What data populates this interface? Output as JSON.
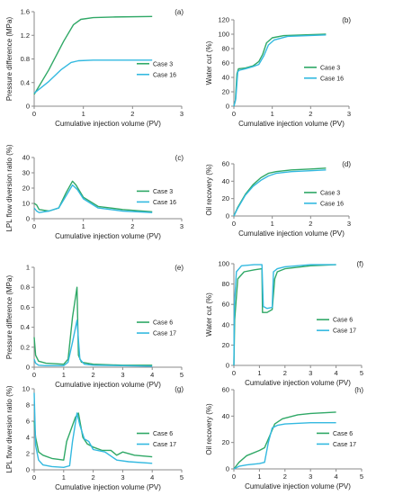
{
  "colors": {
    "green": "#2fa866",
    "blue": "#33b9e0",
    "axis": "#8a8a8a",
    "text": "#222222"
  },
  "chart_data": [
    {
      "panel": "(a)",
      "type": "line",
      "xlabel": "Cumulative injection volume (PV)",
      "ylabel": "Pressure difference (MPa)",
      "xlim": [
        0,
        3
      ],
      "ylim": [
        0,
        1.6
      ],
      "xticks": [
        "0",
        "1",
        "2",
        "3"
      ],
      "yticks": [
        "0",
        "0.4",
        "0.8",
        "1.2",
        "1.6"
      ],
      "legend": "right",
      "series": [
        {
          "name": "Case 3",
          "color": "green",
          "x": [
            0,
            0.3,
            0.6,
            0.8,
            0.95,
            1.2,
            1.6,
            2.4
          ],
          "y": [
            0.2,
            0.62,
            1.1,
            1.38,
            1.47,
            1.5,
            1.51,
            1.52
          ]
        },
        {
          "name": "Case 16",
          "color": "blue",
          "x": [
            0,
            0.3,
            0.55,
            0.75,
            0.9,
            1.2,
            2.4
          ],
          "y": [
            0.22,
            0.42,
            0.62,
            0.74,
            0.77,
            0.78,
            0.78
          ]
        }
      ]
    },
    {
      "panel": "(b)",
      "type": "line",
      "xlabel": "Cumulative injection volume (PV)",
      "ylabel": "Water cut (%)",
      "xlim": [
        0,
        3
      ],
      "ylim": [
        0,
        120
      ],
      "xticks": [
        "0",
        "1",
        "2",
        "3"
      ],
      "yticks": [
        "0",
        "20",
        "40",
        "60",
        "80",
        "100",
        "120"
      ],
      "legend": "right",
      "series": [
        {
          "name": "Case 3",
          "color": "green",
          "x": [
            0,
            0.04,
            0.08,
            0.12,
            0.3,
            0.5,
            0.65,
            0.75,
            0.85,
            1.0,
            1.3,
            1.8,
            2.4
          ],
          "y": [
            0,
            8,
            45,
            52,
            53,
            56,
            62,
            72,
            88,
            95,
            98,
            99,
            100
          ]
        },
        {
          "name": "Case 16",
          "color": "blue",
          "x": [
            0,
            0.05,
            0.1,
            0.15,
            0.3,
            0.5,
            0.65,
            0.78,
            0.9,
            1.05,
            1.4,
            2.4
          ],
          "y": [
            0,
            10,
            48,
            50,
            52,
            55,
            58,
            70,
            85,
            92,
            97,
            99
          ]
        }
      ]
    },
    {
      "panel": "(c)",
      "type": "line",
      "xlabel": "Cumulative injection volume (PV)",
      "ylabel": "LPL flow diversion ratio (%)",
      "xlim": [
        0,
        3
      ],
      "ylim": [
        0,
        40
      ],
      "xticks": [
        "0",
        "1",
        "2",
        "3"
      ],
      "yticks": [
        "0",
        "10",
        "20",
        "30",
        "40"
      ],
      "legend": "right",
      "series": [
        {
          "name": "Case 3",
          "color": "green",
          "x": [
            0,
            0.05,
            0.1,
            0.3,
            0.5,
            0.65,
            0.78,
            0.85,
            1.0,
            1.3,
            1.8,
            2.4
          ],
          "y": [
            10,
            9,
            6,
            5,
            7,
            17,
            24.5,
            22,
            14,
            8,
            6,
            4.5
          ]
        },
        {
          "name": "Case 16",
          "color": "blue",
          "x": [
            0,
            0.05,
            0.1,
            0.3,
            0.5,
            0.65,
            0.78,
            0.88,
            1.0,
            1.3,
            1.8,
            2.4
          ],
          "y": [
            7,
            5,
            4,
            5,
            7,
            15,
            22,
            19,
            13,
            7,
            5,
            4
          ]
        }
      ]
    },
    {
      "panel": "(d)",
      "type": "line",
      "xlabel": "Cumulative injection volume (PV)",
      "ylabel": "Oil recovery (%)",
      "xlim": [
        0,
        3
      ],
      "ylim": [
        0,
        60
      ],
      "xticks": [
        "0",
        "1",
        "2",
        "3"
      ],
      "yticks": [
        "0",
        "20",
        "40",
        "60"
      ],
      "legend": "right",
      "series": [
        {
          "name": "Case 3",
          "color": "green",
          "x": [
            0,
            0.1,
            0.3,
            0.5,
            0.7,
            0.9,
            1.1,
            1.5,
            2.0,
            2.4
          ],
          "y": [
            0,
            10,
            25,
            36,
            44,
            49,
            51,
            53,
            54,
            55
          ]
        },
        {
          "name": "Case 16",
          "color": "blue",
          "x": [
            0,
            0.1,
            0.3,
            0.5,
            0.7,
            0.9,
            1.1,
            1.5,
            2.0,
            2.4
          ],
          "y": [
            0,
            9,
            24,
            34,
            41,
            46,
            49,
            51,
            52,
            53
          ]
        }
      ]
    },
    {
      "panel": "(e)",
      "type": "line",
      "xlabel": "Cumulative injection volume (PV)",
      "ylabel": "Pressure difference (MPa)",
      "xlim": [
        0,
        5
      ],
      "ylim": [
        0,
        1
      ],
      "xticks": [
        "0",
        "1",
        "2",
        "3",
        "4",
        "5"
      ],
      "yticks": [
        "0",
        "0.2",
        "0.4",
        "0.6",
        "0.8",
        "1"
      ],
      "legend": "right",
      "series": [
        {
          "name": "Case 6",
          "color": "green",
          "x": [
            0,
            0.05,
            0.15,
            0.4,
            1.0,
            1.15,
            1.3,
            1.45,
            1.5,
            1.6,
            2.0,
            3.0,
            4.0
          ],
          "y": [
            0.3,
            0.12,
            0.06,
            0.04,
            0.03,
            0.08,
            0.5,
            0.8,
            0.12,
            0.05,
            0.03,
            0.02,
            0.02
          ]
        },
        {
          "name": "Case 17",
          "color": "blue",
          "x": [
            0,
            0.05,
            0.15,
            0.4,
            1.0,
            1.15,
            1.3,
            1.45,
            1.55,
            1.7,
            2.0,
            3.0,
            4.0
          ],
          "y": [
            0.08,
            0.04,
            0.02,
            0.015,
            0.015,
            0.05,
            0.25,
            0.47,
            0.08,
            0.03,
            0.02,
            0.015,
            0.01
          ]
        }
      ]
    },
    {
      "panel": "(f)",
      "type": "line",
      "xlabel": "Cumulative injection volume (PV)",
      "ylabel": "Water cut (%)",
      "xlim": [
        0,
        5
      ],
      "ylim": [
        0,
        100
      ],
      "xticks": [
        "0",
        "1",
        "2",
        "3",
        "4",
        "5"
      ],
      "yticks": [
        "0",
        "20",
        "40",
        "60",
        "80",
        "100"
      ],
      "legend": "right",
      "series": [
        {
          "name": "Case 6",
          "color": "green",
          "x": [
            0,
            0.03,
            0.15,
            0.4,
            0.8,
            1.1,
            1.12,
            1.3,
            1.5,
            1.6,
            1.7,
            2.0,
            3.0,
            4.0
          ],
          "y": [
            0,
            45,
            85,
            92,
            94,
            95,
            52,
            52,
            55,
            85,
            92,
            95,
            98,
            99
          ]
        },
        {
          "name": "Case 17",
          "color": "blue",
          "x": [
            0,
            0.02,
            0.1,
            0.3,
            0.8,
            1.1,
            1.15,
            1.3,
            1.5,
            1.55,
            1.7,
            2.0,
            3.0,
            4.0
          ],
          "y": [
            0,
            60,
            92,
            98,
            99,
            99,
            58,
            56,
            57,
            92,
            95,
            97,
            99,
            99
          ]
        }
      ]
    },
    {
      "panel": "(g)",
      "type": "line",
      "xlabel": "Cumulative injection volume (PV)",
      "ylabel": "LPL flow diversion ratio (%)",
      "xlim": [
        0,
        5
      ],
      "ylim": [
        0,
        10
      ],
      "xticks": [
        "0",
        "1",
        "2",
        "3",
        "4",
        "5"
      ],
      "yticks": [
        "0",
        "2",
        "4",
        "6",
        "8",
        "10"
      ],
      "legend": "right",
      "series": [
        {
          "name": "Case 6",
          "color": "green",
          "x": [
            0,
            0.05,
            0.15,
            0.3,
            0.6,
            1.0,
            1.1,
            1.2,
            1.4,
            1.5,
            1.65,
            1.8,
            2.0,
            2.3,
            2.6,
            2.8,
            3.0,
            3.4,
            4.0
          ],
          "y": [
            6,
            4,
            2.2,
            1.8,
            1.4,
            1.2,
            3.5,
            4.5,
            6.5,
            7,
            4,
            3.2,
            2.8,
            2.4,
            2.4,
            1.8,
            2.2,
            1.8,
            1.6
          ]
        },
        {
          "name": "Case 17",
          "color": "blue",
          "x": [
            0,
            0.05,
            0.15,
            0.3,
            0.6,
            1.0,
            1.2,
            1.3,
            1.45,
            1.55,
            1.7,
            1.85,
            2.0,
            2.4,
            2.8,
            3.2,
            4.0
          ],
          "y": [
            9.5,
            3,
            1.2,
            0.6,
            0.4,
            0.3,
            0.5,
            3.5,
            7,
            5.5,
            3.8,
            3.5,
            2.5,
            2.2,
            1.2,
            1,
            0.8
          ]
        }
      ]
    },
    {
      "panel": "(h)",
      "type": "line",
      "xlabel": "Cumulative injection volume (PV)",
      "ylabel": "Oil recovery (%)",
      "xlim": [
        0,
        5
      ],
      "ylim": [
        0,
        60
      ],
      "xticks": [
        "0",
        "1",
        "2",
        "3",
        "4",
        "5"
      ],
      "yticks": [
        "0",
        "20",
        "40",
        "60"
      ],
      "legend": "right",
      "series": [
        {
          "name": "Case 6",
          "color": "green",
          "x": [
            0,
            0.2,
            0.5,
            1.0,
            1.2,
            1.4,
            1.6,
            1.9,
            2.5,
            3.0,
            4.0
          ],
          "y": [
            0,
            5,
            10,
            14,
            16,
            25,
            34,
            38,
            41,
            42,
            43
          ]
        },
        {
          "name": "Case 17",
          "color": "blue",
          "x": [
            0,
            0.2,
            0.5,
            1.0,
            1.2,
            1.35,
            1.5,
            1.7,
            2.0,
            3.0,
            4.0
          ],
          "y": [
            0,
            2,
            3,
            4,
            5,
            20,
            31,
            33,
            34,
            35,
            35
          ]
        }
      ]
    }
  ]
}
